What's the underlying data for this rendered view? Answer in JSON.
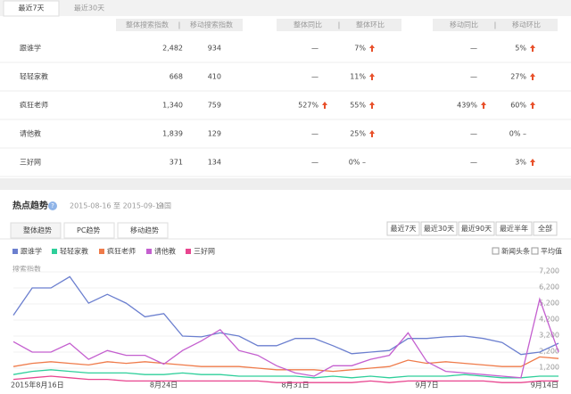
{
  "tabs": [
    "最近7天",
    "最近30天"
  ],
  "table": {
    "headers": [
      "整体搜索指数",
      "移动搜索指数",
      "整体同比",
      "整体环比",
      "移动同比",
      "移动环比"
    ],
    "rows": [
      [
        "跟谁学",
        "2,482",
        "934",
        "—",
        {
          "text": "7%",
          "trend": "up"
        },
        "—",
        {
          "text": "5%",
          "trend": "up"
        }
      ],
      [
        "轻轻家教",
        "668",
        "410",
        "—",
        {
          "text": "11%",
          "trend": "up"
        },
        "—",
        {
          "text": "27%",
          "trend": "up"
        }
      ],
      [
        "疯狂老师",
        "1,340",
        "759",
        {
          "text": "527%",
          "trend": "up"
        },
        {
          "text": "55%",
          "trend": "up"
        },
        {
          "text": "439%",
          "trend": "up"
        },
        {
          "text": "60%",
          "trend": "up"
        }
      ],
      [
        "请他教",
        "1,839",
        "129",
        "—",
        {
          "text": "25%",
          "trend": "up"
        },
        "—",
        "0% –"
      ],
      [
        "三好网",
        "371",
        "134",
        "—",
        "0% –",
        "—",
        {
          "text": "3%",
          "trend": "up"
        }
      ]
    ]
  },
  "section": {
    "title": "热点趋势",
    "date_range": "2015-08-16 至 2015-09-14",
    "region": "全国",
    "view_tabs": [
      "整体趋势",
      "PC趋势",
      "移动趋势"
    ],
    "range_buttons": [
      "最近7天",
      "最近30天",
      "最近90天",
      "最近半年",
      "全部"
    ],
    "checkboxes": [
      "新闻头条",
      "平均值"
    ]
  },
  "chart_data": {
    "type": "line",
    "y_label": "搜索指数",
    "categories": [
      "2015年8月16日",
      null,
      null,
      null,
      null,
      null,
      null,
      null,
      "8月24日",
      null,
      null,
      null,
      null,
      null,
      null,
      "8月31日",
      null,
      null,
      null,
      null,
      null,
      null,
      "9月7日",
      null,
      null,
      null,
      null,
      null,
      null,
      "9月14日"
    ],
    "ylim": [
      0,
      7200
    ],
    "yticks": [
      {
        "value": 1200,
        "label": "1,200"
      },
      {
        "value": 2200,
        "label": "2,200"
      },
      {
        "value": 3200,
        "label": "3,200"
      },
      {
        "value": 4200,
        "label": "4,200"
      },
      {
        "value": 5200,
        "label": "5,200"
      },
      {
        "value": 6200,
        "label": "6,200"
      },
      {
        "value": 7200,
        "label": "7,200"
      }
    ],
    "grid": true,
    "series": [
      {
        "name": "跟谁学",
        "color": "#6b7fcf",
        "values": [
          4500,
          6200,
          6200,
          6900,
          5250,
          5800,
          5250,
          4400,
          4600,
          3200,
          3150,
          3400,
          3200,
          2600,
          2600,
          3050,
          3050,
          2600,
          2100,
          2200,
          2300,
          3050,
          3050,
          3150,
          3200,
          3050,
          2800,
          2050,
          2200,
          2750
        ]
      },
      {
        "name": "轻轻家教",
        "color": "#2ecf9a",
        "values": [
          800,
          1000,
          1100,
          1000,
          900,
          900,
          900,
          800,
          800,
          900,
          800,
          800,
          700,
          700,
          700,
          700,
          600,
          700,
          600,
          700,
          600,
          700,
          700,
          700,
          800,
          700,
          600,
          600,
          700,
          700
        ]
      },
      {
        "name": "疯狂老师",
        "color": "#ef7b4a",
        "values": [
          1300,
          1500,
          1600,
          1500,
          1400,
          1600,
          1500,
          1600,
          1500,
          1400,
          1300,
          1300,
          1300,
          1200,
          1100,
          1100,
          1100,
          1000,
          1100,
          1200,
          1300,
          1700,
          1500,
          1600,
          1500,
          1400,
          1300,
          1300,
          1900,
          1800
        ]
      },
      {
        "name": "请他教",
        "color": "#c45fcf",
        "values": [
          2850,
          2200,
          2200,
          2750,
          1750,
          2300,
          2000,
          2000,
          1450,
          2300,
          2900,
          3600,
          2300,
          2000,
          1350,
          900,
          700,
          1350,
          1350,
          1750,
          2000,
          3400,
          1600,
          1000,
          900,
          800,
          700,
          600,
          5500,
          2200
        ]
      },
      {
        "name": "三好网",
        "color": "#e8458f",
        "values": [
          500,
          600,
          700,
          600,
          500,
          500,
          400,
          400,
          400,
          400,
          400,
          400,
          400,
          400,
          300,
          300,
          300,
          300,
          300,
          400,
          300,
          400,
          400,
          400,
          400,
          400,
          300,
          300,
          400,
          400
        ]
      }
    ]
  }
}
